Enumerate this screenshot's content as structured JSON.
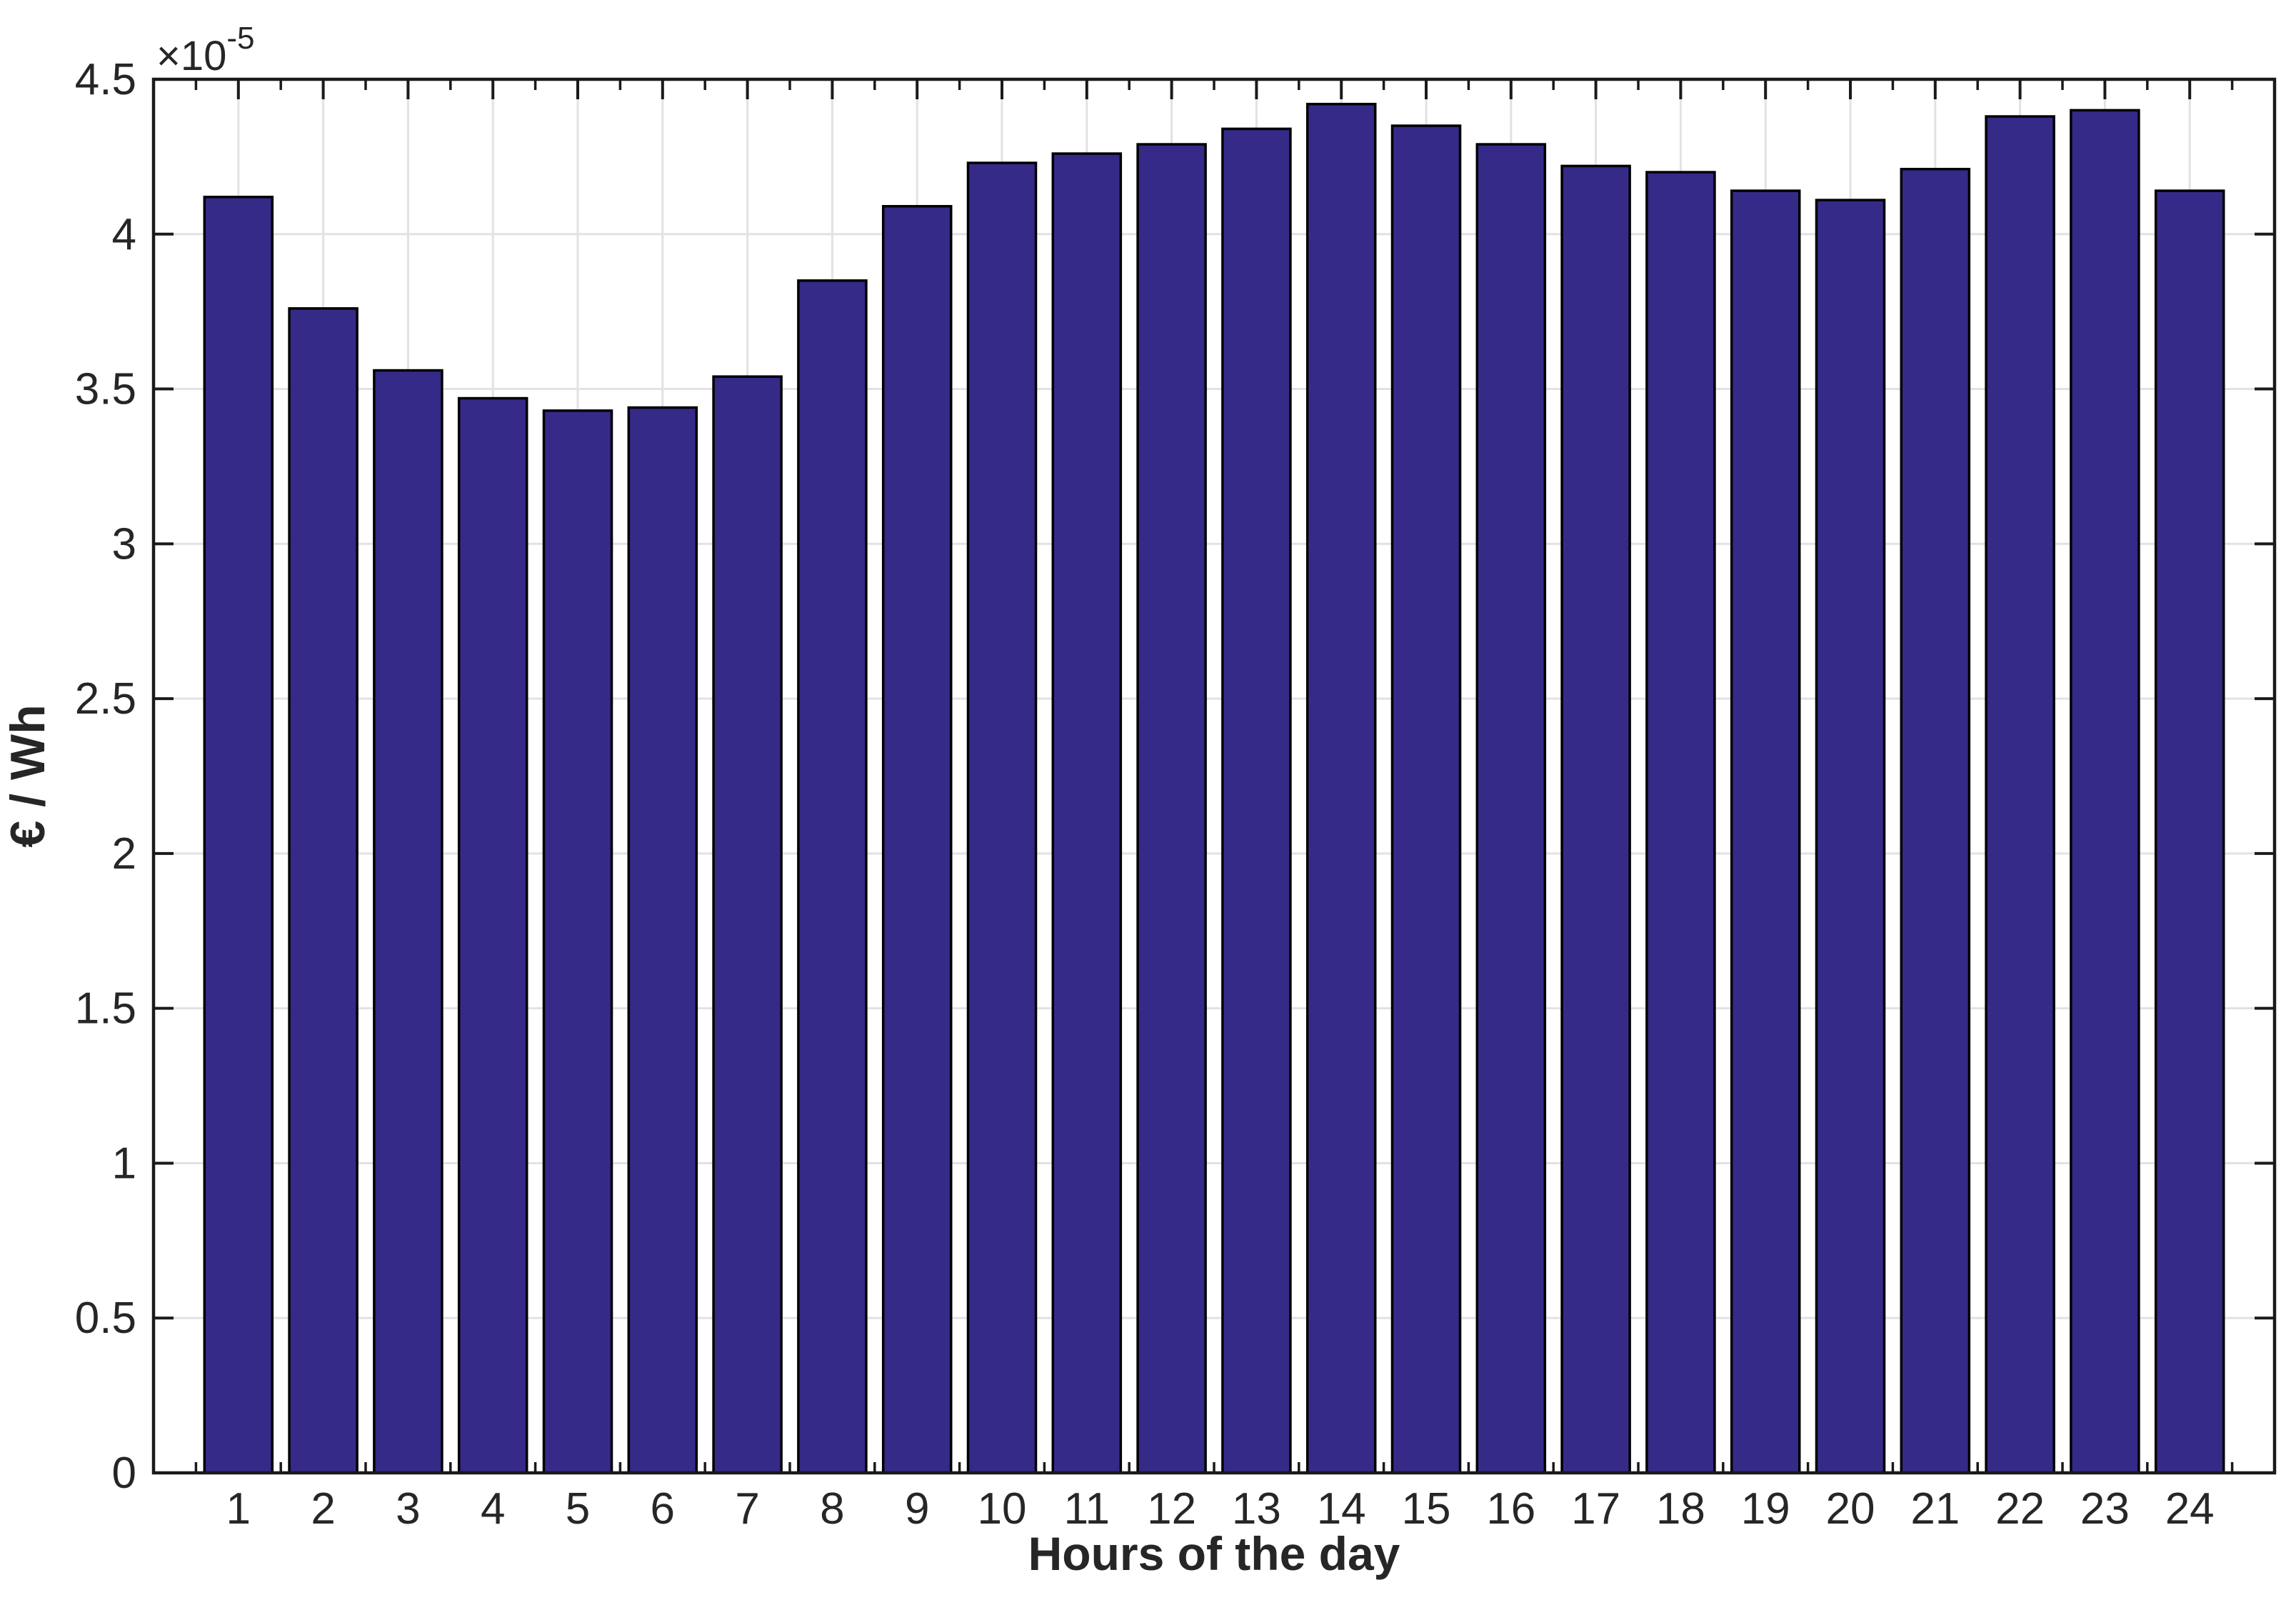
{
  "figure": {
    "background_color": "#ffffff"
  },
  "chart_data": {
    "type": "bar",
    "title": "",
    "xlabel": "Hours of the day",
    "ylabel": "€ / Wh",
    "exponent_label": {
      "mantissa": "×10",
      "exponent": "-5"
    },
    "value_scale": 1e-05,
    "categories": [
      "1",
      "2",
      "3",
      "4",
      "5",
      "6",
      "7",
      "8",
      "9",
      "10",
      "11",
      "12",
      "13",
      "14",
      "15",
      "16",
      "17",
      "18",
      "19",
      "20",
      "21",
      "22",
      "23",
      "24"
    ],
    "values": [
      4.12,
      3.76,
      3.56,
      3.47,
      3.43,
      3.44,
      3.54,
      3.85,
      4.09,
      4.23,
      4.26,
      4.29,
      4.34,
      4.42,
      4.35,
      4.29,
      4.22,
      4.2,
      4.14,
      4.11,
      4.21,
      4.38,
      4.4,
      4.14
    ],
    "ylim": [
      0,
      4.5
    ],
    "xlim": [
      0,
      25
    ],
    "y_ticks": [
      {
        "value": 0,
        "label": "0"
      },
      {
        "value": 0.5,
        "label": "0.5"
      },
      {
        "value": 1,
        "label": "1"
      },
      {
        "value": 1.5,
        "label": "1.5"
      },
      {
        "value": 2,
        "label": "2"
      },
      {
        "value": 2.5,
        "label": "2.5"
      },
      {
        "value": 3,
        "label": "3"
      },
      {
        "value": 3.5,
        "label": "3.5"
      },
      {
        "value": 4,
        "label": "4"
      },
      {
        "value": 4.5,
        "label": "4.5"
      }
    ],
    "grid": true,
    "x_minor_ticks": true,
    "legend": null,
    "bar_width_fraction": 0.8,
    "colors": {
      "bar_fill": "#352A87",
      "bar_edge": "#000000",
      "grid_line": "#E2E2E2",
      "axis_line": "#1A1A1A",
      "tick_label": "#262626",
      "axis_label": "#262626"
    }
  }
}
